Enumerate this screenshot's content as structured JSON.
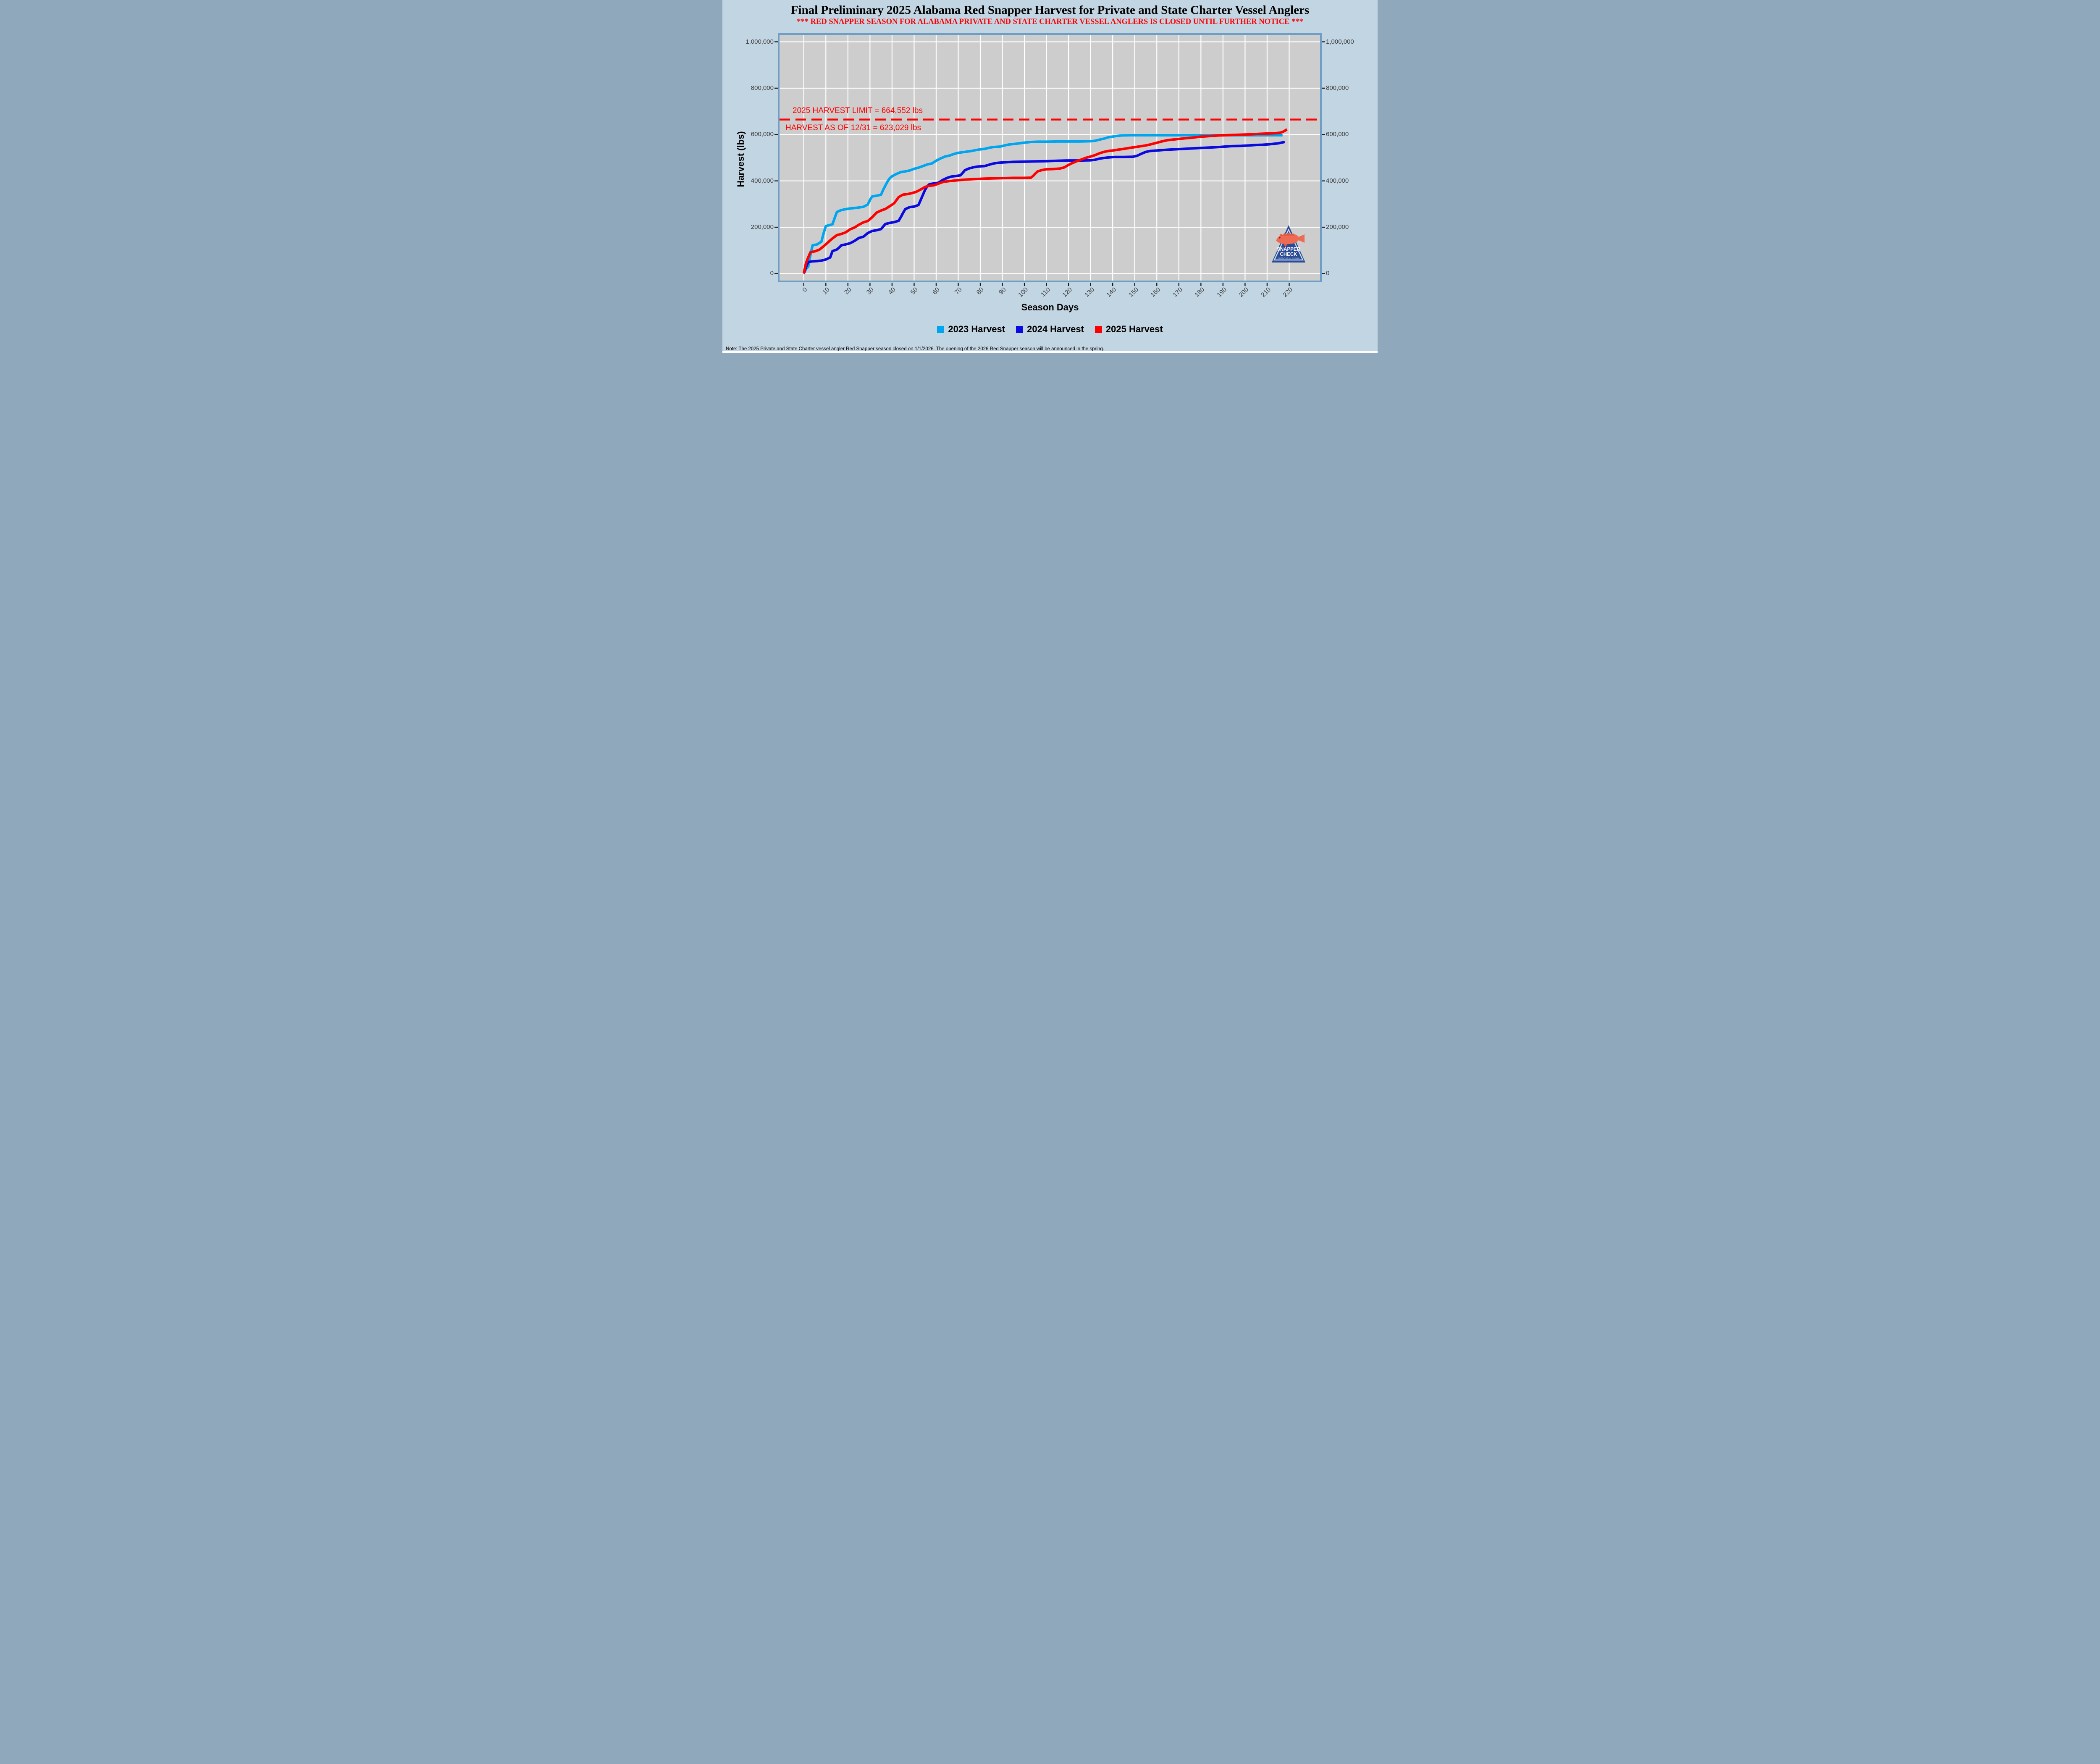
{
  "title": "Final Preliminary 2025 Alabama Red Snapper Harvest for Private and State Charter Vessel Anglers",
  "subtitle": "*** RED SNAPPER SEASON FOR ALABAMA PRIVATE AND STATE CHARTER VESSEL ANGLERS IS CLOSED UNTIL FURTHER NOTICE ***",
  "note": "Note: The 2025 Private and State Charter vessel angler Red Snapper season closed on 1/1/2026.  The opening of the 2026 Red Snapper season will be announced in the spring.",
  "colors": {
    "background": "#C2D5E3",
    "panel": "#CDCDCD",
    "frame": "#6E9EC6",
    "gridline": "#FFFFFF",
    "tick": "#1A1A1A",
    "tick_label": "#3E3E3E",
    "annotation_red": "#FF0000"
  },
  "logo": {
    "line1": "SNAPPER",
    "line2": "CHECK",
    "line3": "OUTDOOR ALABAMA"
  },
  "chart_data": {
    "type": "line",
    "title": "Final Preliminary 2025 Alabama Red Snapper Harvest for Private and State Charter Vessel Anglers",
    "xlabel": "Season Days",
    "ylabel": "Harvest (lbs)",
    "grid": true,
    "legend_position": "bottom",
    "x_domain": [
      -11,
      234
    ],
    "y_domain": [
      -30000,
      1030000
    ],
    "xticks": [
      0,
      10,
      20,
      30,
      40,
      50,
      60,
      70,
      80,
      90,
      100,
      110,
      120,
      130,
      140,
      150,
      160,
      170,
      180,
      190,
      200,
      210,
      220
    ],
    "yticks": [
      {
        "value": 0,
        "label": "0"
      },
      {
        "value": 200000,
        "label": "200,000"
      },
      {
        "value": 400000,
        "label": "400,000"
      },
      {
        "value": 600000,
        "label": "600,000"
      },
      {
        "value": 800000,
        "label": "800,000"
      },
      {
        "value": 1000000,
        "label": "1,000,000"
      }
    ],
    "limit_line": {
      "value": 664552,
      "label": "2025 HARVEST LIMIT = 664,552 lbs",
      "color": "#FF0000",
      "style": "dashed"
    },
    "harvest_annotation": {
      "label": "HARVEST AS OF 12/31 = 623,029 lbs",
      "value": 623029,
      "as_of": "12/31"
    },
    "series": [
      {
        "name": "2023 Harvest",
        "color": "#00A5F0",
        "points": [
          [
            0,
            0
          ],
          [
            1,
            20000
          ],
          [
            2,
            30000
          ],
          [
            3,
            80000
          ],
          [
            4,
            122000
          ],
          [
            6,
            126000
          ],
          [
            8,
            138000
          ],
          [
            9,
            175000
          ],
          [
            10,
            205000
          ],
          [
            12,
            210000
          ],
          [
            13,
            213000
          ],
          [
            14,
            240000
          ],
          [
            15,
            266000
          ],
          [
            17,
            274000
          ],
          [
            19,
            278000
          ],
          [
            21,
            281000
          ],
          [
            24,
            284000
          ],
          [
            27,
            288000
          ],
          [
            29,
            298000
          ],
          [
            30,
            318000
          ],
          [
            31,
            333000
          ],
          [
            33,
            336000
          ],
          [
            35,
            340000
          ],
          [
            36,
            362000
          ],
          [
            37,
            380000
          ],
          [
            38,
            398000
          ],
          [
            39,
            412000
          ],
          [
            40,
            420000
          ],
          [
            42,
            430000
          ],
          [
            44,
            438000
          ],
          [
            46,
            441000
          ],
          [
            48,
            445000
          ],
          [
            50,
            452000
          ],
          [
            52,
            457000
          ],
          [
            54,
            464000
          ],
          [
            56,
            471000
          ],
          [
            58,
            475000
          ],
          [
            60,
            487000
          ],
          [
            62,
            497000
          ],
          [
            64,
            505000
          ],
          [
            66,
            509000
          ],
          [
            68,
            516000
          ],
          [
            70,
            521000
          ],
          [
            73,
            525000
          ],
          [
            76,
            529000
          ],
          [
            78,
            533000
          ],
          [
            80,
            536000
          ],
          [
            82,
            538000
          ],
          [
            84,
            543000
          ],
          [
            86,
            546000
          ],
          [
            89,
            548000
          ],
          [
            91,
            553000
          ],
          [
            93,
            557000
          ],
          [
            96,
            560000
          ],
          [
            100,
            565000
          ],
          [
            103,
            568000
          ],
          [
            106,
            569000
          ],
          [
            110,
            569000
          ],
          [
            115,
            570000
          ],
          [
            120,
            570000
          ],
          [
            125,
            570000
          ],
          [
            130,
            571000
          ],
          [
            132,
            573000
          ],
          [
            134,
            578000
          ],
          [
            136,
            582000
          ],
          [
            138,
            588000
          ],
          [
            140,
            591000
          ],
          [
            142,
            594000
          ],
          [
            144,
            596000
          ],
          [
            148,
            597000
          ],
          [
            160,
            597000
          ],
          [
            180,
            597000
          ],
          [
            200,
            597000
          ],
          [
            217,
            597000
          ]
        ]
      },
      {
        "name": "2024 Harvest",
        "color": "#0A0AE0",
        "points": [
          [
            0,
            0
          ],
          [
            1,
            28000
          ],
          [
            2,
            50000
          ],
          [
            4,
            53000
          ],
          [
            6,
            54000
          ],
          [
            8,
            56000
          ],
          [
            10,
            61000
          ],
          [
            12,
            70000
          ],
          [
            13,
            97000
          ],
          [
            15,
            104000
          ],
          [
            16,
            112000
          ],
          [
            17,
            122000
          ],
          [
            19,
            126000
          ],
          [
            21,
            131000
          ],
          [
            23,
            141000
          ],
          [
            25,
            154000
          ],
          [
            27,
            159000
          ],
          [
            29,
            175000
          ],
          [
            31,
            184000
          ],
          [
            33,
            187000
          ],
          [
            35,
            192000
          ],
          [
            37,
            214000
          ],
          [
            39,
            219000
          ],
          [
            41,
            222000
          ],
          [
            43,
            228000
          ],
          [
            44,
            244000
          ],
          [
            45,
            262000
          ],
          [
            46,
            278000
          ],
          [
            48,
            287000
          ],
          [
            50,
            289000
          ],
          [
            52,
            296000
          ],
          [
            53,
            318000
          ],
          [
            54,
            340000
          ],
          [
            55,
            362000
          ],
          [
            56,
            377000
          ],
          [
            57,
            386000
          ],
          [
            59,
            389000
          ],
          [
            61,
            392000
          ],
          [
            63,
            404000
          ],
          [
            65,
            413000
          ],
          [
            67,
            419000
          ],
          [
            69,
            421000
          ],
          [
            71,
            424000
          ],
          [
            72,
            434000
          ],
          [
            73,
            446000
          ],
          [
            75,
            454000
          ],
          [
            77,
            459000
          ],
          [
            79,
            462000
          ],
          [
            82,
            464000
          ],
          [
            84,
            470000
          ],
          [
            86,
            475000
          ],
          [
            88,
            478000
          ],
          [
            91,
            480000
          ],
          [
            95,
            482000
          ],
          [
            100,
            483000
          ],
          [
            105,
            484000
          ],
          [
            110,
            485000
          ],
          [
            115,
            487000
          ],
          [
            120,
            488000
          ],
          [
            125,
            488000
          ],
          [
            130,
            489000
          ],
          [
            132,
            491000
          ],
          [
            134,
            496000
          ],
          [
            136,
            499000
          ],
          [
            138,
            501000
          ],
          [
            141,
            503000
          ],
          [
            145,
            503000
          ],
          [
            149,
            504000
          ],
          [
            151,
            508000
          ],
          [
            153,
            517000
          ],
          [
            155,
            525000
          ],
          [
            157,
            529000
          ],
          [
            160,
            531000
          ],
          [
            164,
            534000
          ],
          [
            168,
            536000
          ],
          [
            172,
            538000
          ],
          [
            176,
            540000
          ],
          [
            180,
            542000
          ],
          [
            184,
            544000
          ],
          [
            188,
            546000
          ],
          [
            191,
            548000
          ],
          [
            194,
            550000
          ],
          [
            198,
            551000
          ],
          [
            202,
            553000
          ],
          [
            205,
            555000
          ],
          [
            208,
            556000
          ],
          [
            211,
            558000
          ],
          [
            213,
            560000
          ],
          [
            215,
            562000
          ],
          [
            216,
            564000
          ],
          [
            217,
            566000
          ],
          [
            218,
            568000
          ]
        ]
      },
      {
        "name": "2025 Harvest",
        "color": "#FF0000",
        "points": [
          [
            0,
            0
          ],
          [
            1,
            45000
          ],
          [
            2,
            70000
          ],
          [
            3,
            92000
          ],
          [
            5,
            96000
          ],
          [
            7,
            103000
          ],
          [
            9,
            118000
          ],
          [
            11,
            135000
          ],
          [
            13,
            152000
          ],
          [
            15,
            166000
          ],
          [
            17,
            171000
          ],
          [
            19,
            178000
          ],
          [
            21,
            191000
          ],
          [
            23,
            199000
          ],
          [
            25,
            211000
          ],
          [
            27,
            221000
          ],
          [
            29,
            227000
          ],
          [
            31,
            243000
          ],
          [
            33,
            263000
          ],
          [
            35,
            272000
          ],
          [
            37,
            279000
          ],
          [
            39,
            291000
          ],
          [
            41,
            304000
          ],
          [
            43,
            330000
          ],
          [
            45,
            341000
          ],
          [
            47,
            343000
          ],
          [
            49,
            347000
          ],
          [
            51,
            353000
          ],
          [
            53,
            363000
          ],
          [
            55,
            374000
          ],
          [
            57,
            379000
          ],
          [
            59,
            381000
          ],
          [
            61,
            388000
          ],
          [
            63,
            395000
          ],
          [
            65,
            398000
          ],
          [
            68,
            401000
          ],
          [
            71,
            404000
          ],
          [
            74,
            406000
          ],
          [
            78,
            408000
          ],
          [
            82,
            410000
          ],
          [
            86,
            411000
          ],
          [
            90,
            412000
          ],
          [
            95,
            413000
          ],
          [
            100,
            413000
          ],
          [
            103,
            414000
          ],
          [
            104,
            422000
          ],
          [
            105,
            432000
          ],
          [
            106,
            441000
          ],
          [
            108,
            447000
          ],
          [
            110,
            450000
          ],
          [
            113,
            451000
          ],
          [
            116,
            453000
          ],
          [
            118,
            458000
          ],
          [
            120,
            469000
          ],
          [
            122,
            478000
          ],
          [
            124,
            486000
          ],
          [
            126,
            493000
          ],
          [
            128,
            500000
          ],
          [
            130,
            505000
          ],
          [
            132,
            511000
          ],
          [
            134,
            519000
          ],
          [
            136,
            525000
          ],
          [
            138,
            529000
          ],
          [
            140,
            531000
          ],
          [
            142,
            534000
          ],
          [
            145,
            538000
          ],
          [
            148,
            543000
          ],
          [
            151,
            547000
          ],
          [
            153,
            550000
          ],
          [
            155,
            553000
          ],
          [
            157,
            557000
          ],
          [
            159,
            562000
          ],
          [
            161,
            567000
          ],
          [
            163,
            572000
          ],
          [
            165,
            576000
          ],
          [
            167,
            578000
          ],
          [
            170,
            581000
          ],
          [
            173,
            584000
          ],
          [
            176,
            586000
          ],
          [
            179,
            590000
          ],
          [
            182,
            592000
          ],
          [
            185,
            594000
          ],
          [
            188,
            596000
          ],
          [
            191,
            597000
          ],
          [
            194,
            598000
          ],
          [
            197,
            599000
          ],
          [
            200,
            600000
          ],
          [
            203,
            601000
          ],
          [
            206,
            603000
          ],
          [
            209,
            604000
          ],
          [
            212,
            605000
          ],
          [
            214,
            606000
          ],
          [
            216,
            608000
          ],
          [
            217,
            611000
          ],
          [
            218,
            616000
          ],
          [
            219,
            623029
          ]
        ]
      }
    ]
  }
}
